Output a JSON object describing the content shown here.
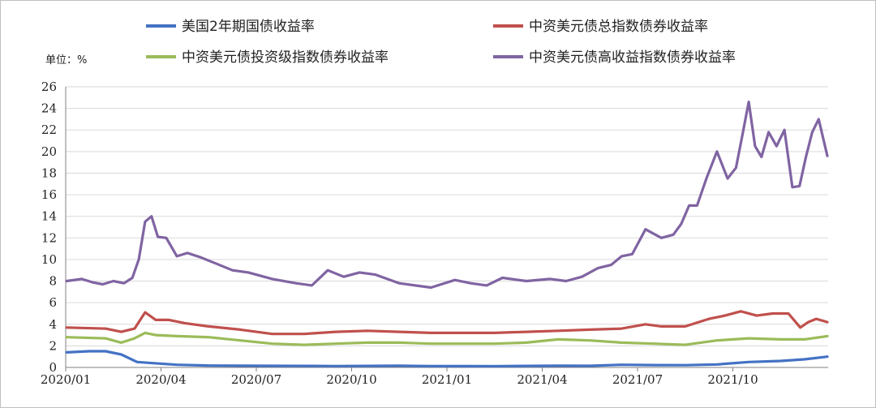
{
  "chart_data": {
    "type": "line",
    "ylabel": "单位：%",
    "ylim": [
      0,
      26
    ],
    "yticks": [
      0,
      2,
      4,
      6,
      8,
      10,
      12,
      14,
      16,
      18,
      20,
      22,
      24,
      26
    ],
    "xlim": [
      "2020/01",
      "2021/12"
    ],
    "xticks": [
      "2020/01",
      "2020/04",
      "2020/07",
      "2020/10",
      "2021/01",
      "2021/04",
      "2021/07",
      "2021/10"
    ],
    "grid": "horizontal",
    "legend_position": "top",
    "series": [
      {
        "name": "美国2年期国债收益率",
        "color": "#4472c4",
        "points": [
          [
            "2020/01",
            1.4
          ],
          [
            "2020/01",
            1.5
          ],
          [
            "2020/02",
            1.5
          ],
          [
            "2020/02",
            1.2
          ],
          [
            "2020/03",
            0.5
          ],
          [
            "2020/03",
            0.4
          ],
          [
            "2020/04",
            0.25
          ],
          [
            "2020/05",
            0.17
          ],
          [
            "2020/06",
            0.16
          ],
          [
            "2020/07",
            0.15
          ],
          [
            "2020/08",
            0.14
          ],
          [
            "2020/09",
            0.13
          ],
          [
            "2020/10",
            0.14
          ],
          [
            "2020/11",
            0.16
          ],
          [
            "2020/12",
            0.12
          ],
          [
            "2021/01",
            0.12
          ],
          [
            "2021/02",
            0.11
          ],
          [
            "2021/03",
            0.14
          ],
          [
            "2021/04",
            0.16
          ],
          [
            "2021/05",
            0.15
          ],
          [
            "2021/06",
            0.25
          ],
          [
            "2021/07",
            0.22
          ],
          [
            "2021/08",
            0.21
          ],
          [
            "2021/09",
            0.28
          ],
          [
            "2021/10",
            0.5
          ],
          [
            "2021/11",
            0.6
          ],
          [
            "2021/12",
            0.75
          ],
          [
            "2021/12",
            1.0
          ]
        ]
      },
      {
        "name": "中资美元债总指数债券收益率",
        "color": "#c0504d",
        "points": [
          [
            "2020/01",
            3.7
          ],
          [
            "2020/02",
            3.6
          ],
          [
            "2020/02",
            3.3
          ],
          [
            "2020/03",
            3.6
          ],
          [
            "2020/03",
            5.1
          ],
          [
            "2020/03",
            4.4
          ],
          [
            "2020/04",
            4.4
          ],
          [
            "2020/04",
            4.1
          ],
          [
            "2020/05",
            3.8
          ],
          [
            "2020/06",
            3.5
          ],
          [
            "2020/07",
            3.1
          ],
          [
            "2020/08",
            3.1
          ],
          [
            "2020/09",
            3.3
          ],
          [
            "2020/10",
            3.4
          ],
          [
            "2020/11",
            3.3
          ],
          [
            "2020/12",
            3.2
          ],
          [
            "2021/01",
            3.2
          ],
          [
            "2021/02",
            3.2
          ],
          [
            "2021/03",
            3.3
          ],
          [
            "2021/04",
            3.4
          ],
          [
            "2021/05",
            3.5
          ],
          [
            "2021/06",
            3.6
          ],
          [
            "2021/07",
            4.0
          ],
          [
            "2021/07",
            3.8
          ],
          [
            "2021/08",
            3.8
          ],
          [
            "2021/09",
            4.5
          ],
          [
            "2021/09",
            4.8
          ],
          [
            "2021/10",
            5.2
          ],
          [
            "2021/10",
            4.8
          ],
          [
            "2021/11",
            5.0
          ],
          [
            "2021/11",
            5.0
          ],
          [
            "2021/12",
            3.7
          ],
          [
            "2021/12",
            4.2
          ],
          [
            "2021/12",
            4.5
          ],
          [
            "2021/12",
            4.2
          ]
        ]
      },
      {
        "name": "中资美元债投资级指数债券收益率",
        "color": "#9bbb59",
        "points": [
          [
            "2020/01",
            2.8
          ],
          [
            "2020/02",
            2.7
          ],
          [
            "2020/02",
            2.3
          ],
          [
            "2020/03",
            2.7
          ],
          [
            "2020/03",
            3.2
          ],
          [
            "2020/03",
            3.0
          ],
          [
            "2020/04",
            2.9
          ],
          [
            "2020/05",
            2.8
          ],
          [
            "2020/06",
            2.5
          ],
          [
            "2020/07",
            2.2
          ],
          [
            "2020/08",
            2.1
          ],
          [
            "2020/09",
            2.2
          ],
          [
            "2020/10",
            2.3
          ],
          [
            "2020/11",
            2.3
          ],
          [
            "2020/12",
            2.2
          ],
          [
            "2021/01",
            2.2
          ],
          [
            "2021/02",
            2.2
          ],
          [
            "2021/03",
            2.3
          ],
          [
            "2021/04",
            2.6
          ],
          [
            "2021/05",
            2.5
          ],
          [
            "2021/06",
            2.3
          ],
          [
            "2021/07",
            2.2
          ],
          [
            "2021/08",
            2.1
          ],
          [
            "2021/09",
            2.5
          ],
          [
            "2021/10",
            2.7
          ],
          [
            "2021/11",
            2.6
          ],
          [
            "2021/12",
            2.6
          ],
          [
            "2021/12",
            2.9
          ]
        ]
      },
      {
        "name": "中资美元债高收益指数债券收益率",
        "color": "#8064a2",
        "points": [
          [
            "2020/01",
            8.0
          ],
          [
            "2020/01",
            8.2
          ],
          [
            "2020/01",
            7.9
          ],
          [
            "2020/02",
            7.7
          ],
          [
            "2020/02",
            8.0
          ],
          [
            "2020/02",
            7.8
          ],
          [
            "2020/03",
            8.3
          ],
          [
            "2020/03",
            10.0
          ],
          [
            "2020/03",
            13.5
          ],
          [
            "2020/03",
            14.0
          ],
          [
            "2020/03",
            12.1
          ],
          [
            "2020/04",
            12.0
          ],
          [
            "2020/04",
            10.3
          ],
          [
            "2020/04",
            10.6
          ],
          [
            "2020/05",
            10.2
          ],
          [
            "2020/05",
            9.6
          ],
          [
            "2020/06",
            9.0
          ],
          [
            "2020/06",
            8.8
          ],
          [
            "2020/07",
            8.2
          ],
          [
            "2020/08",
            7.8
          ],
          [
            "2020/08",
            7.6
          ],
          [
            "2020/09",
            9.0
          ],
          [
            "2020/09",
            8.4
          ],
          [
            "2020/10",
            8.8
          ],
          [
            "2020/10",
            8.6
          ],
          [
            "2020/11",
            7.8
          ],
          [
            "2020/12",
            7.4
          ],
          [
            "2021/01",
            8.1
          ],
          [
            "2021/01",
            7.8
          ],
          [
            "2021/02",
            7.6
          ],
          [
            "2021/02",
            8.3
          ],
          [
            "2021/03",
            8.0
          ],
          [
            "2021/04",
            8.2
          ],
          [
            "2021/04",
            8.0
          ],
          [
            "2021/05",
            8.4
          ],
          [
            "2021/05",
            9.2
          ],
          [
            "2021/06",
            9.5
          ],
          [
            "2021/06",
            10.3
          ],
          [
            "2021/06",
            10.5
          ],
          [
            "2021/07",
            12.8
          ],
          [
            "2021/07",
            12.0
          ],
          [
            "2021/08",
            12.3
          ],
          [
            "2021/08",
            13.3
          ],
          [
            "2021/08",
            15.0
          ],
          [
            "2021/08",
            15.0
          ],
          [
            "2021/09",
            17.5
          ],
          [
            "2021/09",
            20.0
          ],
          [
            "2021/09",
            17.5
          ],
          [
            "2021/10",
            18.5
          ],
          [
            "2021/10",
            21.5
          ],
          [
            "2021/10",
            24.6
          ],
          [
            "2021/10",
            20.5
          ],
          [
            "2021/10",
            19.5
          ],
          [
            "2021/11",
            21.8
          ],
          [
            "2021/11",
            20.5
          ],
          [
            "2021/11",
            22.0
          ],
          [
            "2021/11",
            16.7
          ],
          [
            "2021/12",
            16.8
          ],
          [
            "2021/12",
            19.5
          ],
          [
            "2021/12",
            21.8
          ],
          [
            "2021/12",
            23.0
          ],
          [
            "2021/12",
            19.6
          ]
        ]
      }
    ]
  }
}
